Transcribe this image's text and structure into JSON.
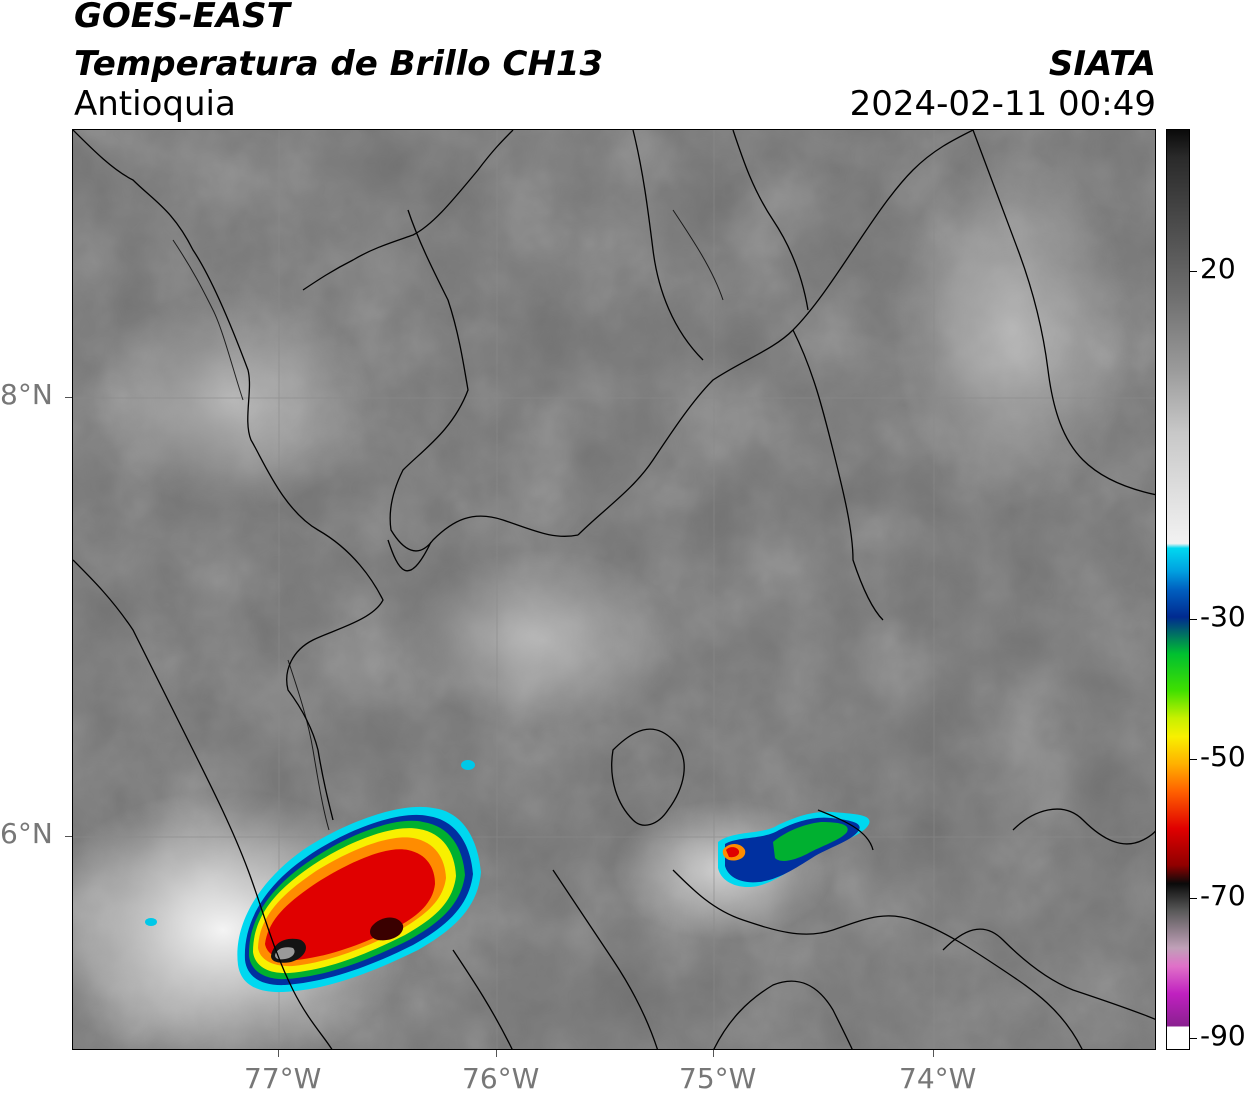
{
  "header": {
    "satellite": "GOES-EAST",
    "product": "Temperatura de Brillo CH13",
    "region": "Antioquia",
    "organization": "SIATA",
    "timestamp": "2024-02-11 00:49"
  },
  "map": {
    "lon_labels": [
      "77°W",
      "76°W",
      "75°W",
      "74°W"
    ],
    "lat_labels": [
      "8°N",
      "6°N"
    ],
    "lon_range": [
      -77.95,
      -73.0
    ],
    "lat_range": [
      5.05,
      9.2
    ]
  },
  "colorbar": {
    "tick_labels": [
      "20",
      "-30",
      "-50",
      "-70",
      "-90"
    ],
    "range": [
      -90,
      40
    ],
    "colors": {
      "warm_gray": "#2a2a2a",
      "cold_white": "#f2f2f2",
      "cyan": "#00d8f0",
      "blue": "#002a90",
      "green": "#00c030",
      "yellow": "#f8f000",
      "orange": "#ff8c00",
      "red": "#e00000",
      "black": "#0a0a0a",
      "magenta": "#c020c0"
    }
  }
}
